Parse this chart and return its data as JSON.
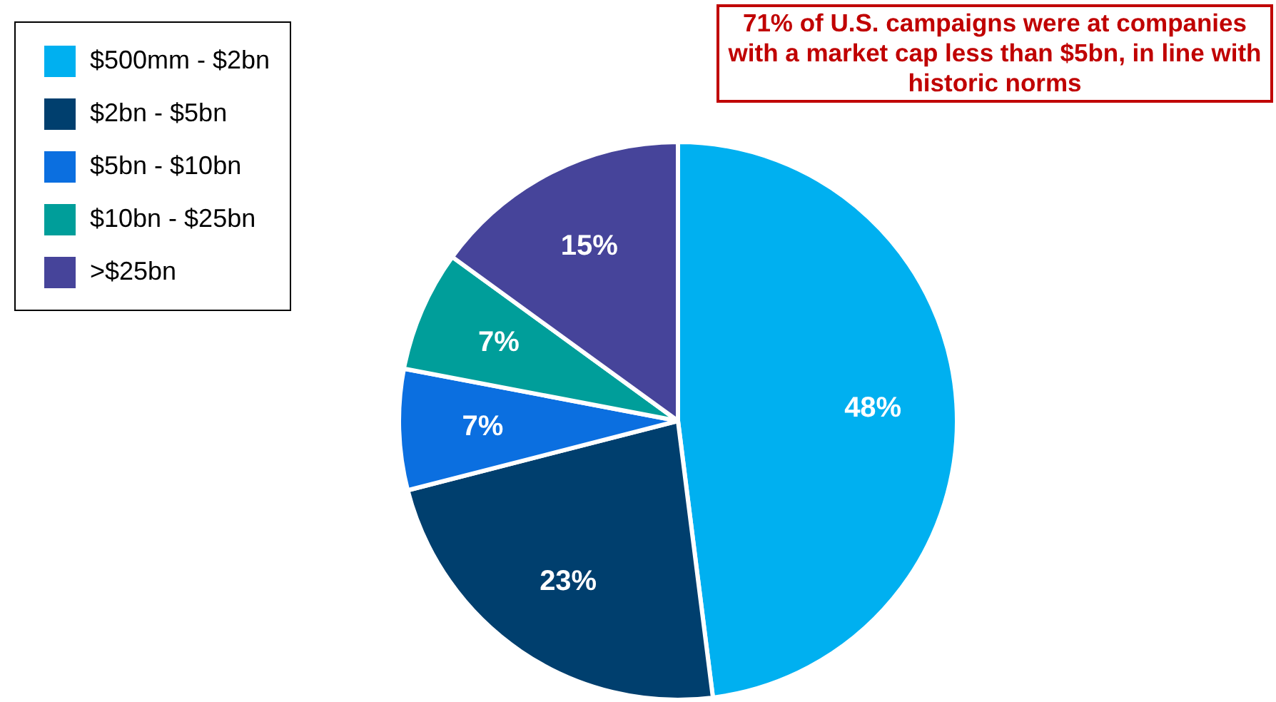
{
  "chart_data": {
    "type": "pie",
    "categories": [
      "$500mm - $2bn",
      "$2bn - $5bn",
      "$5bn - $10bn",
      "$10bn - $25bn",
      ">$25bn"
    ],
    "values": [
      48,
      23,
      7,
      7,
      15
    ],
    "colors": [
      "#00b0f0",
      "#003f6e",
      "#0b6fe0",
      "#009e9a",
      "#46449a"
    ],
    "value_labels": [
      "48%",
      "23%",
      "7%",
      "7%",
      "15%"
    ],
    "legend": "top left",
    "annotations": [
      "71% of U.S. campaigns were at companies with a market cap less than $5bn, in line with historic norms"
    ]
  }
}
